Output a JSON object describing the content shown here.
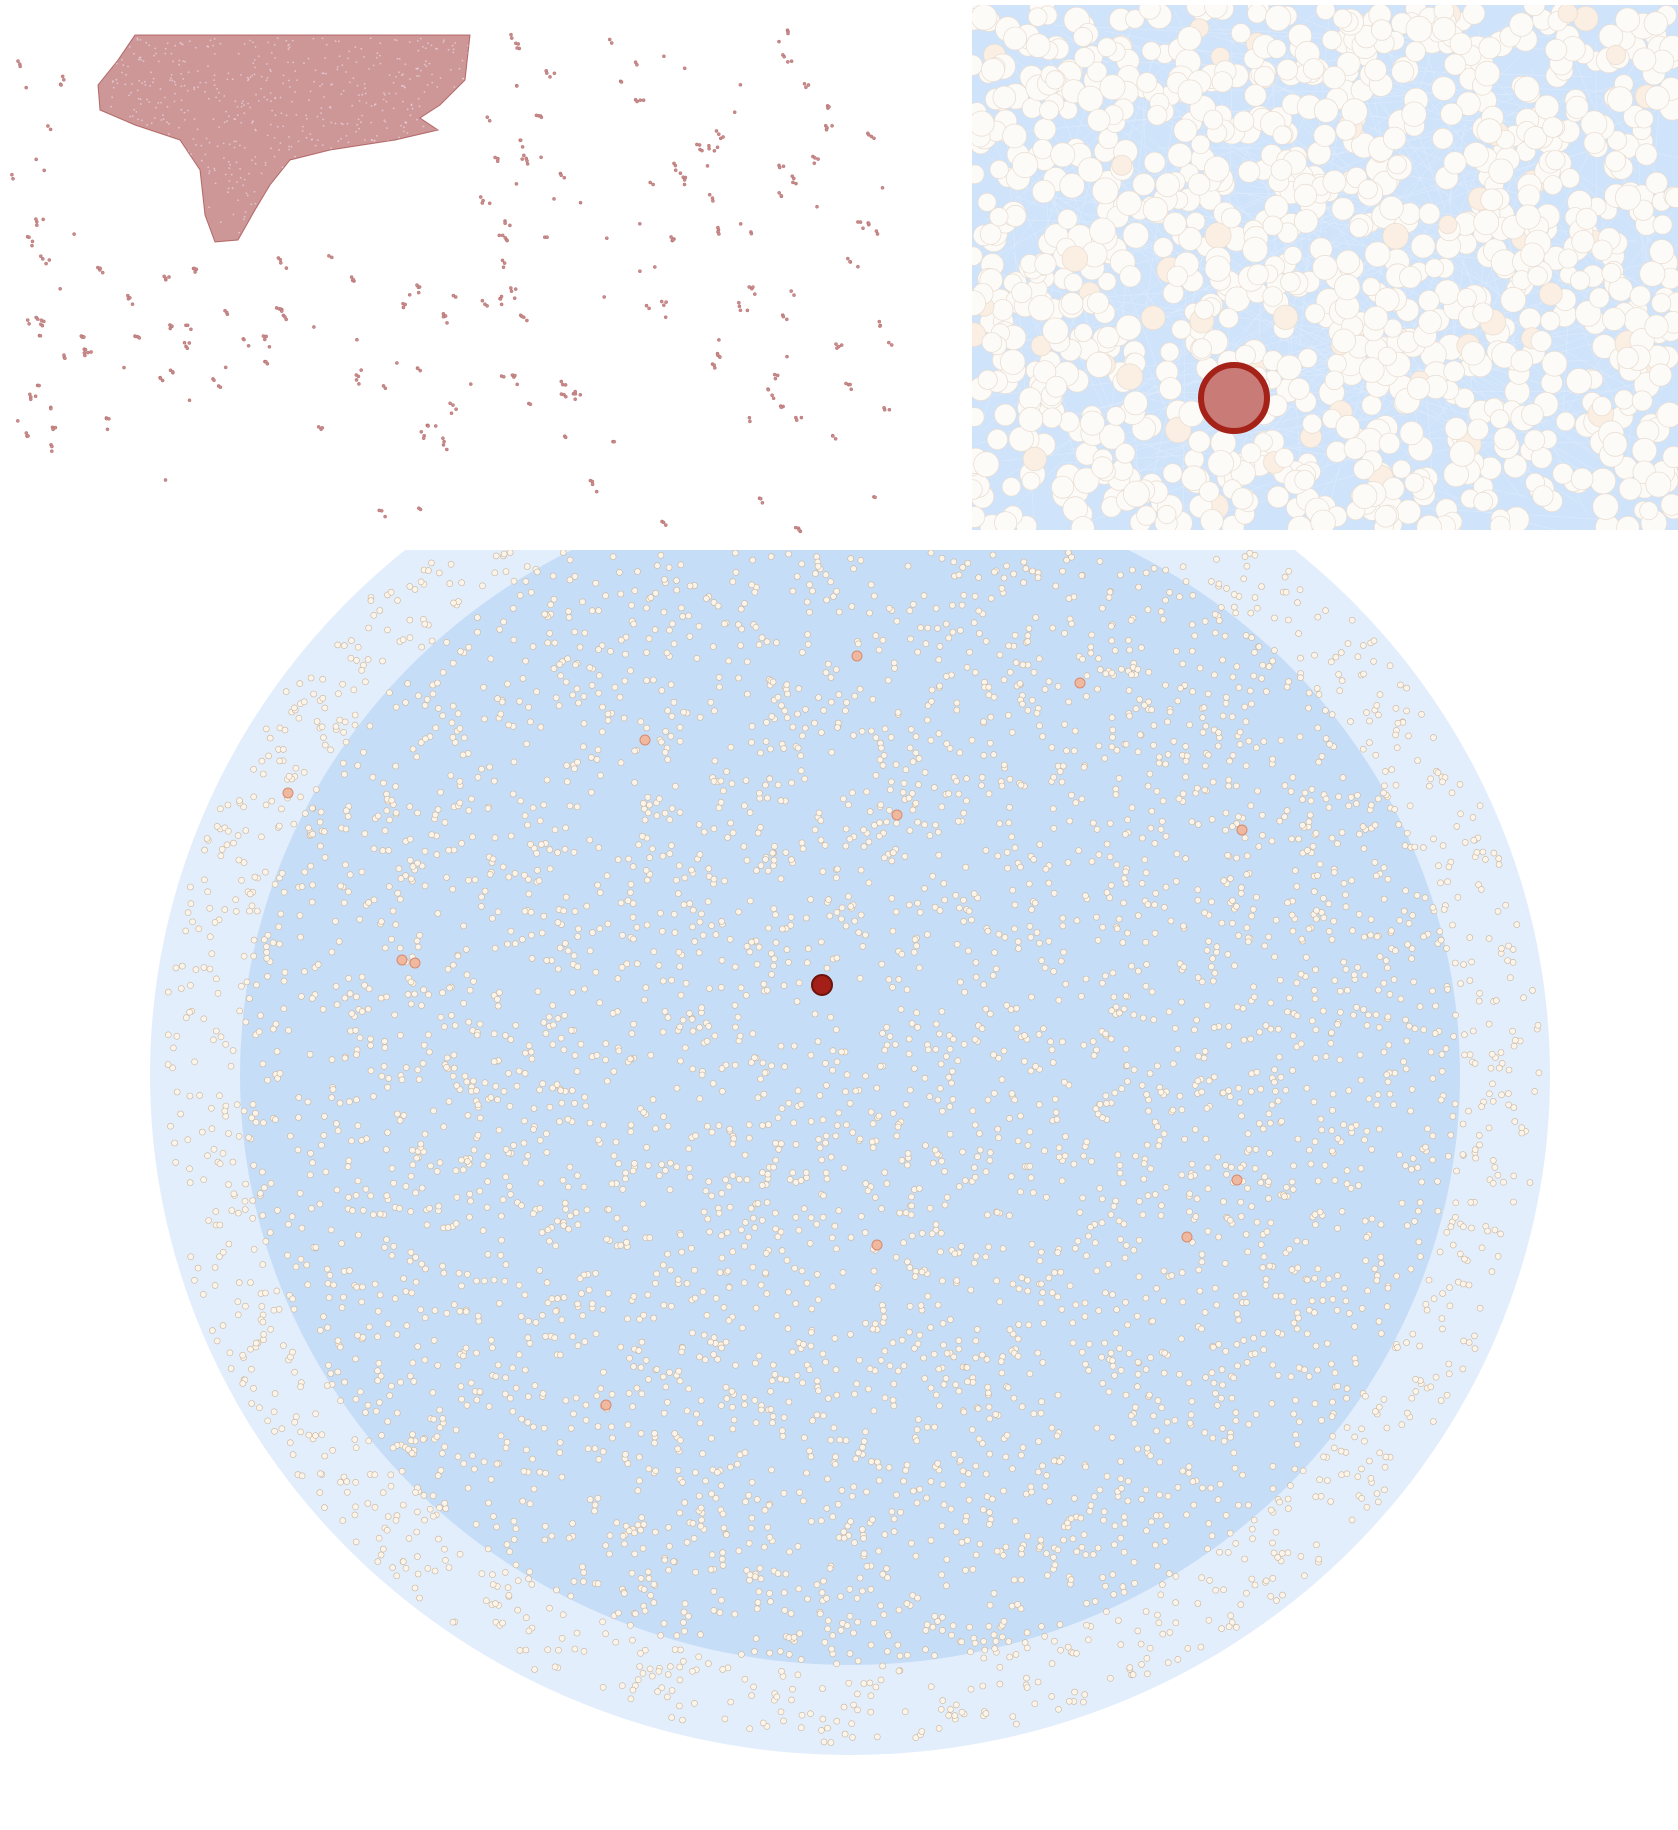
{
  "figure": {
    "panels": [
      {
        "id": "overview",
        "description_label": ""
      },
      {
        "id": "zoom-detail",
        "description_label": ""
      },
      {
        "id": "full-network",
        "description_label": ""
      }
    ]
  },
  "colors": {
    "edge": "#c6ddf8",
    "edge_light": "#e3eefc",
    "node_fill": "#fbf4ea",
    "node_stroke": "#c9b49a",
    "overview_node": "#c98c8c",
    "overview_node_stroke": "#b06464",
    "hub_fill": "#a31f17",
    "hub_stroke": "#6e120c",
    "hub_zoom_fill": "#c97b78",
    "hub_zoom_stroke": "#a52218",
    "secondary_fill": "#f1b8a0",
    "secondary_stroke": "#d68b6f"
  },
  "icons": {
    "hub": "highlighted-hub-node-icon"
  }
}
